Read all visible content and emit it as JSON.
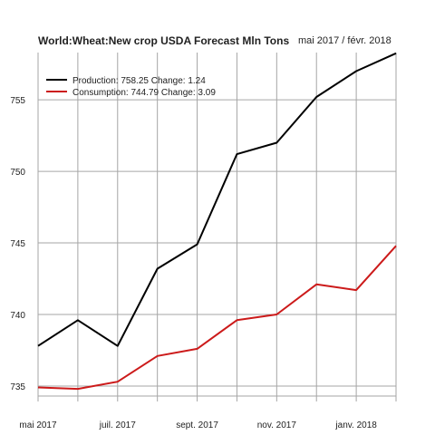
{
  "chart_data": {
    "type": "line",
    "title": "World:Wheat:New crop USDA Forecast Mln Tons",
    "subtitle": "mai 2017 / févr. 2018",
    "x": [
      "2017-05",
      "2017-06",
      "2017-07",
      "2017-08",
      "2017-09",
      "2017-10",
      "2017-11",
      "2017-12",
      "2018-01",
      "2018-02"
    ],
    "x_tick_labels": [
      "mai 2017",
      "juil. 2017",
      "sept. 2017",
      "nov. 2017",
      "janv. 2018"
    ],
    "y_ticks": [
      735,
      740,
      745,
      750,
      755
    ],
    "ylim": [
      734.3,
      758.3
    ],
    "grid": true,
    "legend_position": "top-left",
    "series": [
      {
        "name": "Production",
        "legend_label": "Production: 758.25  Change: 1.24",
        "color": "#000000",
        "values": [
          737.8,
          739.6,
          737.8,
          743.2,
          744.9,
          751.2,
          752.0,
          755.2,
          757.0,
          758.25
        ]
      },
      {
        "name": "Consumption",
        "legend_label": "Consumption: 744.79  Change: 3.09",
        "color": "#cc1a1a",
        "values": [
          734.9,
          734.8,
          735.3,
          737.1,
          737.6,
          739.6,
          740.0,
          742.1,
          741.7,
          744.79
        ]
      }
    ],
    "grid_color": "#a6a6a6"
  }
}
